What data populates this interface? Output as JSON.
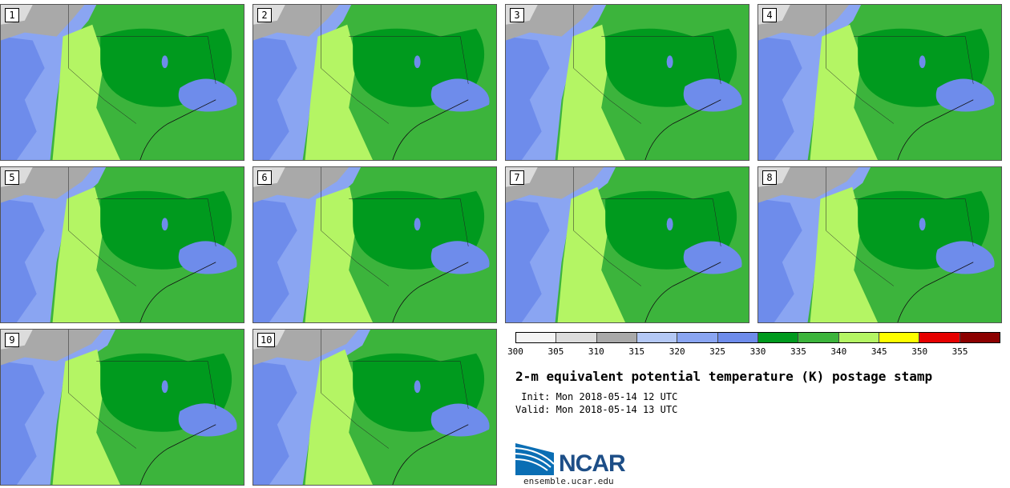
{
  "panels": [
    {
      "label": "1"
    },
    {
      "label": "2"
    },
    {
      "label": "3"
    },
    {
      "label": "4"
    },
    {
      "label": "5"
    },
    {
      "label": "6"
    },
    {
      "label": "7"
    },
    {
      "label": "8"
    },
    {
      "label": "9"
    },
    {
      "label": "10"
    }
  ],
  "colorbar": {
    "tick_labels": [
      "300",
      "305",
      "310",
      "315",
      "320",
      "325",
      "330",
      "335",
      "340",
      "345",
      "350",
      "355"
    ],
    "colors": [
      "#f4f4f4",
      "#dcdcdc",
      "#a9a9a9",
      "#b4c8f5",
      "#8aa5f2",
      "#6e8ceb",
      "#009a1e",
      "#3cb43c",
      "#b4f564",
      "#ffff00",
      "#e60000",
      "#8c0000"
    ]
  },
  "title": "2-m equivalent potential temperature (K) postage stamp",
  "init_time": " Init: Mon 2018-05-14 12 UTC",
  "valid_time": "Valid: Mon 2018-05-14 13 UTC",
  "logo": {
    "text": "NCAR",
    "url": "ensemble.ucar.edu"
  }
}
